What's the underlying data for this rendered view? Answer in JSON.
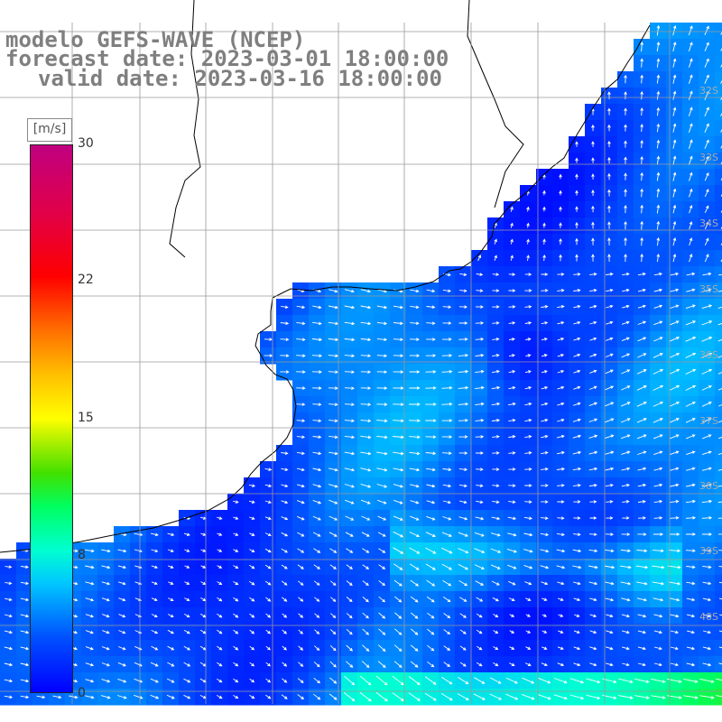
{
  "title": {
    "line1": "modelo GEFS-WAVE (NCEP)",
    "line2": "forecast date: 2023-03-01 18:00:00",
    "line3": "valid date: 2023-03-16 18:00:00"
  },
  "colorbar": {
    "unit": "[m/s]",
    "ticks": [
      {
        "value": 30,
        "label": "30"
      },
      {
        "value": 22,
        "label": "22"
      },
      {
        "value": 15,
        "label": "15"
      },
      {
        "value": 8,
        "label": "8"
      },
      {
        "value": 0,
        "label": "0"
      }
    ],
    "range": [
      0,
      30
    ]
  },
  "map": {
    "lat_labels": [
      "32S",
      "33S",
      "34S",
      "35S",
      "36S",
      "37S",
      "38S",
      "39S",
      "40S"
    ],
    "colors": {
      "land": "#ffffff",
      "coastline": "#000000",
      "grid": "#9a9a9a",
      "arrow": "#ffffff"
    },
    "field": "wind speed with direction arrows over the ocean"
  }
}
